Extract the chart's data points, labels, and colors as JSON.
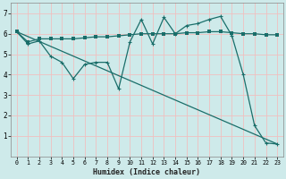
{
  "xlabel": "Humidex (Indice chaleur)",
  "bg_color": "#ceeaea",
  "grid_color": "#f0c0c0",
  "line_color": "#1a6e6a",
  "xlim": [
    -0.5,
    23.5
  ],
  "ylim": [
    0,
    7.5
  ],
  "xticks": [
    0,
    1,
    2,
    3,
    4,
    5,
    6,
    7,
    8,
    9,
    10,
    11,
    12,
    13,
    14,
    15,
    16,
    17,
    18,
    19,
    20,
    21,
    22,
    23
  ],
  "yticks": [
    1,
    2,
    3,
    4,
    5,
    6,
    7
  ],
  "series1_x": [
    0,
    1,
    2,
    3,
    4,
    5,
    6,
    7,
    8,
    9,
    10,
    11,
    12,
    13,
    14,
    15,
    16,
    17,
    18,
    19,
    20,
    21,
    22,
    23
  ],
  "series1_y": [
    6.1,
    5.6,
    5.75,
    5.75,
    5.75,
    5.75,
    5.8,
    5.85,
    5.85,
    5.9,
    5.95,
    6.0,
    6.0,
    6.0,
    6.0,
    6.05,
    6.05,
    6.1,
    6.1,
    6.05,
    6.0,
    6.0,
    5.95,
    5.95
  ],
  "series2_x": [
    0,
    1,
    2,
    3,
    4,
    5,
    6,
    7,
    8,
    9,
    10,
    11,
    12,
    13,
    14,
    15,
    16,
    17,
    18,
    19,
    20,
    21,
    22,
    23
  ],
  "series2_y": [
    6.1,
    5.5,
    5.65,
    4.9,
    4.6,
    3.8,
    4.5,
    4.6,
    4.6,
    3.3,
    5.6,
    6.7,
    5.5,
    6.8,
    6.0,
    6.4,
    6.5,
    6.7,
    6.85,
    5.9,
    4.0,
    1.5,
    0.65,
    0.6
  ],
  "series3_x": [
    0,
    23
  ],
  "series3_y": [
    6.1,
    0.6
  ]
}
